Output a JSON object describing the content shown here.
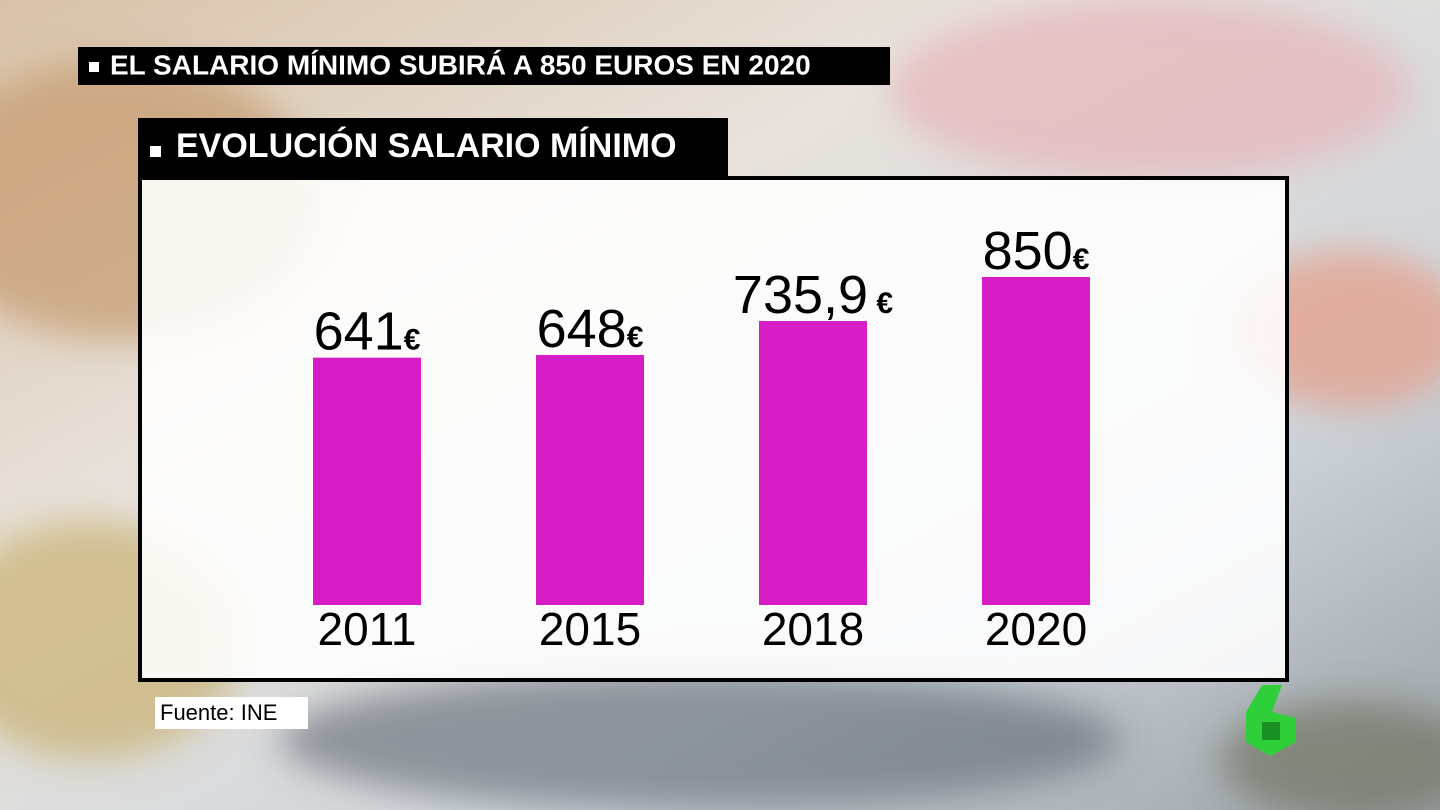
{
  "chart_data": {
    "type": "bar",
    "headline": "EL SALARIO MÍNIMO SUBIRÁ A 850 EUROS EN 2020",
    "title": "EVOLUCIÓN SALARIO MÍNIMO",
    "source": "Fuente: INE",
    "categories": [
      "2011",
      "2015",
      "2018",
      "2020"
    ],
    "values": [
      641,
      648,
      735.9,
      850
    ],
    "value_labels": [
      "641€",
      "648€",
      "735,9 €",
      "850€"
    ],
    "color": "#d61cc4"
  }
}
